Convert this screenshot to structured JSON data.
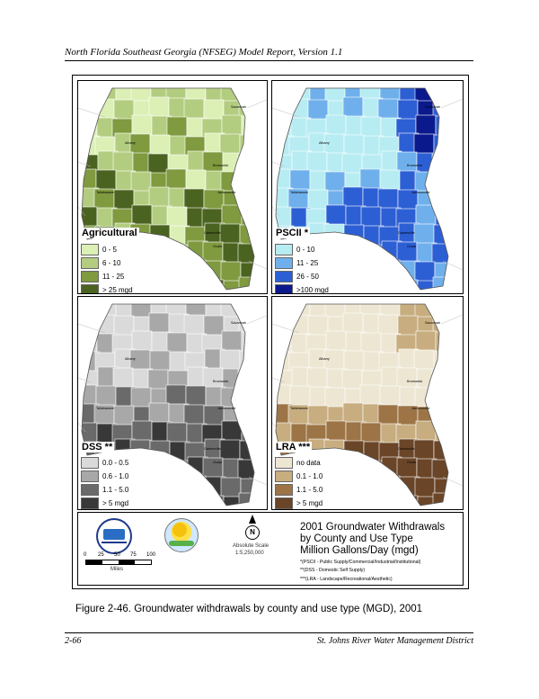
{
  "header": "North Florida Southeast Georgia (NFSEG) Model Report, Version 1.1",
  "colors": {
    "agri": [
      "#dcefb5",
      "#b3cd80",
      "#7f9a3f",
      "#4b6320"
    ],
    "pscii": [
      "#b7ecf2",
      "#6fb0ec",
      "#2d5fd4",
      "#0a1a8c"
    ],
    "dss": [
      "#dadada",
      "#a8a8a8",
      "#6a6a6a",
      "#383838"
    ],
    "lra": [
      "#ede6d3",
      "#c7ad7f",
      "#9c7446",
      "#6a4527"
    ]
  },
  "panels": [
    {
      "id": "agri",
      "title": "Agricultural",
      "legend": [
        "0 - 5",
        "6 - 10",
        "11 - 25",
        "> 25 mgd"
      ]
    },
    {
      "id": "pscii",
      "title": "PSCII *",
      "legend": [
        "0 - 10",
        "11 - 25",
        "26 - 50",
        ">100 mgd"
      ]
    },
    {
      "id": "dss",
      "title": "DSS **",
      "legend": [
        "0.0 - 0.5",
        "0.6 - 1.0",
        "1.1 - 5.0",
        "> 5 mgd"
      ]
    },
    {
      "id": "lra",
      "title": "LRA ***",
      "legend": [
        "no data",
        "0.1 - 1.0",
        "1.1 - 5.0",
        "> 5 mgd"
      ]
    }
  ],
  "cities": [
    "Savannah",
    "Albany",
    "Brunswick",
    "Tallahassee",
    "Jacksonville",
    "Gainesville",
    "Ocala"
  ],
  "bottom": {
    "scale_ticks": [
      "0",
      "25",
      "50",
      "75",
      "100"
    ],
    "scale_unit": "Miles",
    "north_letter": "N",
    "abs_scale_label": "Absolute Scale",
    "abs_scale_value": "1:5,250,000",
    "title_lines": [
      "2001 Groundwater Withdrawals",
      "by County and Use Type",
      "Million Gallons/Day (mgd)"
    ],
    "notes": [
      "*(PSCII - Public Supply/Commercial/Industrial/Institutional)",
      "**(DSS - Domestic Self Supply)",
      "***(LRA - Landscape/Recreational/Aesthetic)"
    ]
  },
  "caption": "Figure 2-46.    Groundwater withdrawals by county and use type (MGD), 2001",
  "footer_left": "2-66",
  "footer_right": "St. Johns River Water Management District"
}
